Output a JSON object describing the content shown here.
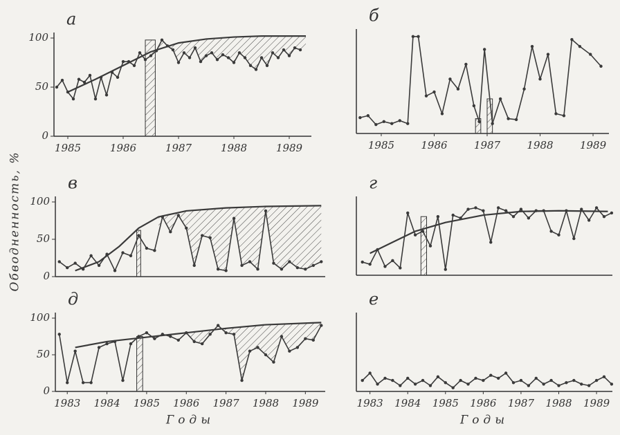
{
  "y_label": "Обводненность, %",
  "chart_data": [
    {
      "type": "line",
      "label": "а",
      "xlim": [
        1984.75,
        1989.4
      ],
      "ylim": [
        0,
        100
      ],
      "xticks": [
        1985,
        1986,
        1987,
        1988,
        1989
      ],
      "yticks": [
        0,
        50,
        100
      ],
      "series": [
        {
          "color": "#3a3a3a",
          "x": [
            1984.8,
            1984.9,
            1985.0,
            1985.1,
            1985.2,
            1985.3,
            1985.4,
            1985.5,
            1985.6,
            1985.7,
            1985.8,
            1985.9,
            1986.0,
            1986.1,
            1986.2,
            1986.3,
            1986.4,
            1986.5,
            1986.6,
            1986.7,
            1986.8,
            1986.9,
            1987.0,
            1987.1,
            1987.2,
            1987.3,
            1987.4,
            1987.5,
            1987.6,
            1987.7,
            1987.8,
            1987.9,
            1988.0,
            1988.1,
            1988.2,
            1988.3,
            1988.4,
            1988.5,
            1988.6,
            1988.7,
            1988.8,
            1988.9,
            1989.0,
            1989.1,
            1989.2
          ],
          "values": [
            50,
            57,
            45,
            38,
            58,
            55,
            62,
            38,
            60,
            42,
            65,
            60,
            76,
            76,
            72,
            85,
            78,
            82,
            87,
            98,
            92,
            88,
            75,
            85,
            80,
            90,
            76,
            82,
            85,
            78,
            83,
            80,
            75,
            85,
            80,
            72,
            68,
            80,
            72,
            85,
            80,
            88,
            82,
            90,
            88
          ]
        },
        {
          "color": "#3a3a3a",
          "trend": true,
          "x": [
            1985.0,
            1985.5,
            1986.0,
            1986.5,
            1987.0,
            1987.5,
            1988.0,
            1988.5,
            1989.3
          ],
          "values": [
            45,
            58,
            72,
            86,
            95,
            99,
            101,
            102,
            102
          ]
        }
      ],
      "hatch_range": [
        1986.6,
        1989.3
      ],
      "bars": [
        {
          "x": [
            1986.4,
            1986.58
          ],
          "value": 98
        }
      ]
    },
    {
      "type": "line",
      "label": "б",
      "xlim": [
        1984.53,
        1989.3
      ],
      "ylim": [
        0,
        100
      ],
      "xticks": [
        1985,
        1986,
        1987,
        1988,
        1989
      ],
      "series": [
        {
          "color": "#3a3a3a",
          "x": [
            1984.6,
            1984.75,
            1984.9,
            1985.05,
            1985.2,
            1985.35,
            1985.5,
            1985.6,
            1985.7,
            1985.85,
            1986.0,
            1986.15,
            1986.3,
            1986.45,
            1986.6,
            1986.75,
            1986.85,
            1986.95,
            1987.1,
            1987.25,
            1987.4,
            1987.55,
            1987.7,
            1987.85,
            1988.0,
            1988.15,
            1988.3,
            1988.45,
            1988.6,
            1988.75,
            1988.95,
            1989.15
          ],
          "values": [
            16,
            18,
            9,
            12,
            10,
            13,
            10,
            98,
            98,
            38,
            42,
            20,
            55,
            45,
            70,
            28,
            12,
            85,
            10,
            35,
            15,
            14,
            45,
            88,
            55,
            80,
            20,
            18,
            95,
            88,
            80,
            68
          ]
        }
      ],
      "bars": [
        {
          "x": [
            1986.78,
            1986.88
          ],
          "value": 15
        },
        {
          "x": [
            1987.0,
            1987.1
          ],
          "value": 35
        }
      ]
    },
    {
      "type": "line",
      "label": "в",
      "xlim": [
        1982.7,
        1989.5
      ],
      "ylim": [
        0,
        100
      ],
      "yticks": [
        0,
        50,
        100
      ],
      "series": [
        {
          "color": "#3a3a3a",
          "x": [
            1982.8,
            1983.0,
            1983.2,
            1983.4,
            1983.6,
            1983.8,
            1984.0,
            1984.2,
            1984.4,
            1984.6,
            1984.8,
            1985.0,
            1985.2,
            1985.4,
            1985.6,
            1985.8,
            1986.0,
            1986.2,
            1986.4,
            1986.6,
            1986.8,
            1987.0,
            1987.2,
            1987.4,
            1987.6,
            1987.8,
            1988.0,
            1988.2,
            1988.4,
            1988.6,
            1988.8,
            1989.0,
            1989.2,
            1989.4
          ],
          "values": [
            20,
            12,
            18,
            10,
            28,
            15,
            30,
            8,
            32,
            28,
            55,
            38,
            35,
            80,
            60,
            82,
            65,
            15,
            55,
            52,
            10,
            8,
            78,
            15,
            20,
            10,
            88,
            18,
            10,
            20,
            12,
            10,
            15,
            20
          ]
        },
        {
          "color": "#3a3a3a",
          "trend": true,
          "x": [
            1983.2,
            1983.8,
            1984.3,
            1984.8,
            1985.3,
            1986.0,
            1987.0,
            1988.0,
            1989.4
          ],
          "values": [
            8,
            20,
            40,
            65,
            80,
            88,
            92,
            94,
            95
          ]
        }
      ],
      "hatch_range": [
        1985.3,
        1989.4
      ],
      "bars": [
        {
          "x": [
            1984.75,
            1984.85
          ],
          "value": 62
        }
      ]
    },
    {
      "type": "line",
      "label": "г",
      "xlim": [
        1982.64,
        1989.42
      ],
      "ylim": [
        0,
        100
      ],
      "series": [
        {
          "color": "#3a3a3a",
          "x": [
            1982.8,
            1983.0,
            1983.2,
            1983.4,
            1983.6,
            1983.8,
            1984.0,
            1984.2,
            1984.4,
            1984.6,
            1984.8,
            1985.0,
            1985.2,
            1985.4,
            1985.6,
            1985.8,
            1986.0,
            1986.2,
            1986.4,
            1986.6,
            1986.8,
            1987.0,
            1987.2,
            1987.4,
            1987.6,
            1987.8,
            1988.0,
            1988.2,
            1988.4,
            1988.6,
            1988.8,
            1989.0,
            1989.2,
            1989.4
          ],
          "values": [
            18,
            15,
            35,
            12,
            20,
            10,
            85,
            55,
            60,
            40,
            80,
            8,
            82,
            78,
            90,
            92,
            88,
            45,
            92,
            88,
            80,
            90,
            78,
            88,
            88,
            60,
            55,
            88,
            50,
            90,
            75,
            92,
            80,
            85
          ]
        },
        {
          "color": "#3a3a3a",
          "trend": true,
          "x": [
            1983.0,
            1983.6,
            1984.2,
            1985.0,
            1986.0,
            1987.0,
            1988.0,
            1989.3
          ],
          "values": [
            30,
            45,
            60,
            72,
            82,
            87,
            88,
            87
          ]
        }
      ],
      "bars": [
        {
          "x": [
            1984.35,
            1984.5
          ],
          "value": 80
        }
      ]
    },
    {
      "type": "line",
      "label": "д",
      "xlim": [
        1982.7,
        1989.5
      ],
      "ylim": [
        0,
        100
      ],
      "xticks": [
        1983,
        1984,
        1985,
        1986,
        1987,
        1988,
        1989
      ],
      "yticks": [
        0,
        50,
        100
      ],
      "x_label": "Годы",
      "series": [
        {
          "color": "#3a3a3a",
          "x": [
            1982.8,
            1983.0,
            1983.2,
            1983.4,
            1983.6,
            1983.8,
            1984.0,
            1984.2,
            1984.4,
            1984.6,
            1984.8,
            1985.0,
            1985.2,
            1985.4,
            1985.6,
            1985.8,
            1986.0,
            1986.2,
            1986.4,
            1986.6,
            1986.8,
            1987.0,
            1987.2,
            1987.4,
            1987.6,
            1987.8,
            1988.0,
            1988.2,
            1988.4,
            1988.6,
            1988.8,
            1989.0,
            1989.2,
            1989.4
          ],
          "values": [
            78,
            12,
            55,
            12,
            12,
            60,
            65,
            68,
            15,
            65,
            75,
            80,
            72,
            78,
            75,
            70,
            80,
            68,
            65,
            78,
            90,
            80,
            78,
            15,
            55,
            60,
            50,
            40,
            75,
            55,
            60,
            72,
            70,
            90
          ]
        },
        {
          "color": "#3a3a3a",
          "trend": true,
          "x": [
            1983.2,
            1984.0,
            1985.0,
            1986.0,
            1987.0,
            1988.0,
            1989.4
          ],
          "values": [
            60,
            68,
            74,
            80,
            86,
            91,
            94
          ]
        }
      ],
      "hatch_range": [
        1986.0,
        1989.4
      ],
      "bars": [
        {
          "x": [
            1984.75,
            1984.9
          ],
          "value": 75
        }
      ]
    },
    {
      "type": "line",
      "label": "е",
      "xlim": [
        1982.64,
        1989.42
      ],
      "ylim": [
        0,
        100
      ],
      "xticks": [
        1983,
        1984,
        1985,
        1986,
        1987,
        1988,
        1989
      ],
      "x_label": "Годы",
      "series": [
        {
          "color": "#3a3a3a",
          "x": [
            1982.8,
            1983.0,
            1983.2,
            1983.4,
            1983.6,
            1983.8,
            1984.0,
            1984.2,
            1984.4,
            1984.6,
            1984.8,
            1985.0,
            1985.2,
            1985.4,
            1985.6,
            1985.8,
            1986.0,
            1986.2,
            1986.4,
            1986.6,
            1986.8,
            1987.0,
            1987.2,
            1987.4,
            1987.6,
            1987.8,
            1988.0,
            1988.2,
            1988.4,
            1988.6,
            1988.8,
            1989.0,
            1989.2,
            1989.4
          ],
          "values": [
            15,
            25,
            10,
            18,
            15,
            8,
            18,
            10,
            15,
            8,
            20,
            12,
            5,
            15,
            10,
            18,
            15,
            22,
            18,
            25,
            12,
            15,
            8,
            18,
            10,
            15,
            8,
            12,
            15,
            10,
            8,
            15,
            20,
            10
          ]
        }
      ]
    }
  ]
}
